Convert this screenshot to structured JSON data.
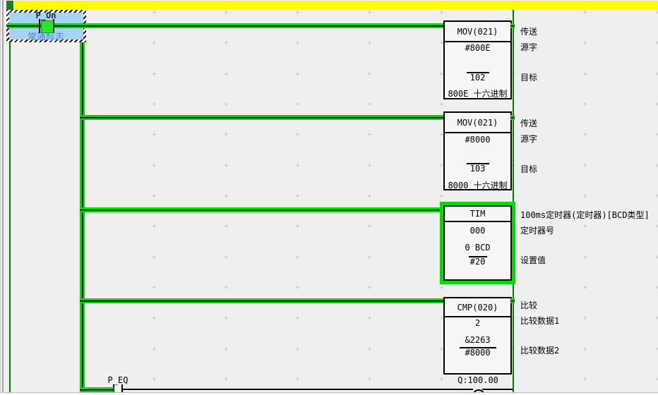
{
  "palette": {
    "power_flow_green": "#00d900",
    "bus_green": "#007a00",
    "rung_bar_yellow": "#ffff00",
    "rung_marker_green": "#1c7e1c",
    "selection_fill_blue": "#a9d3f5",
    "symbol_comment_blue": "#4b87d9"
  },
  "selected_contact": {
    "name": "P_On",
    "comment": "常通标志"
  },
  "rungs": [
    {
      "instruction": {
        "title": "MOV(021)",
        "operand1": "#800E",
        "operand2": "102",
        "monitor": "800E 十六进制"
      },
      "annotations": {
        "a1": "传送",
        "a2": "源字",
        "a3": "目标"
      }
    },
    {
      "instruction": {
        "title": "MOV(021)",
        "operand1": "#8000",
        "operand2": "103",
        "monitor": "8000 十六进制"
      },
      "annotations": {
        "a1": "传送",
        "a2": "源字",
        "a3": "目标"
      }
    },
    {
      "instruction": {
        "title": "TIM",
        "operand1": "000",
        "monitor": "0 BCD",
        "operand2": "#20"
      },
      "annotations": {
        "a1": "100ms定时器(定时器)[BCD类型]",
        "a2": "定时器号",
        "a3": "设置值"
      }
    },
    {
      "instruction": {
        "title": "CMP(020)",
        "operand1": "2",
        "monitor": "&2263",
        "operand2": "#8000"
      },
      "annotations": {
        "a1": "比较",
        "a2": "比较数据1",
        "a3": "比较数据2"
      }
    }
  ],
  "output_rung": {
    "contact_label": "P_EQ",
    "coil_label": "Q:100.00"
  }
}
